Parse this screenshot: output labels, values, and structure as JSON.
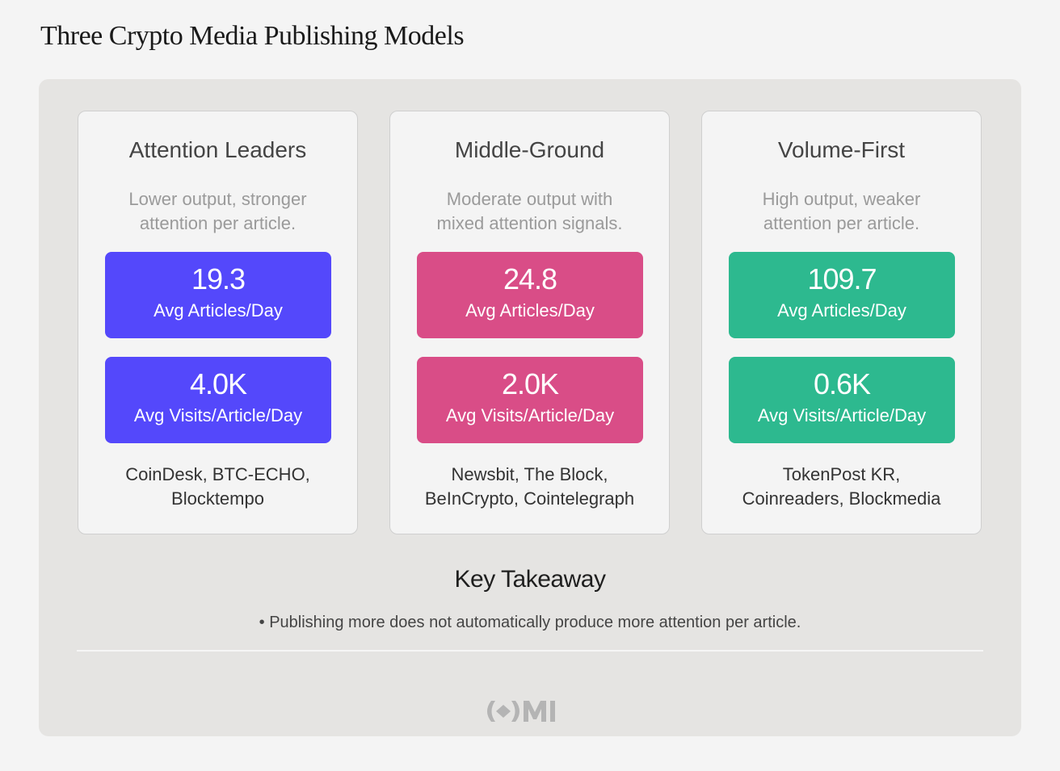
{
  "title": "Three Crypto Media Publishing Models",
  "cards": [
    {
      "title": "Attention Leaders",
      "color": "#5448fb",
      "description": [
        "Lower output, stronger",
        "attention per article."
      ],
      "metrics": [
        {
          "value": "19.3",
          "label": "Avg Articles/Day"
        },
        {
          "value": "4.0K",
          "label": "Avg Visits/Article/Day"
        }
      ],
      "outlets": [
        "CoinDesk, BTC-ECHO,",
        "Blocktempo"
      ]
    },
    {
      "title": "Middle-Ground",
      "color": "#d94d87",
      "description": [
        "Moderate output with",
        "mixed attention signals."
      ],
      "metrics": [
        {
          "value": "24.8",
          "label": "Avg Articles/Day"
        },
        {
          "value": "2.0K",
          "label": "Avg Visits/Article/Day"
        }
      ],
      "outlets": [
        "Newsbit, The Block,",
        "BeInCrypto, Cointelegraph"
      ]
    },
    {
      "title": "Volume-First",
      "color": "#2db98f",
      "description": [
        "High output, weaker",
        "attention per article."
      ],
      "metrics": [
        {
          "value": "109.7",
          "label": "Avg Articles/Day"
        },
        {
          "value": "0.6K",
          "label": "Avg Visits/Article/Day"
        }
      ],
      "outlets": [
        "TokenPost KR,",
        "Coinreaders, Blockmedia"
      ]
    }
  ],
  "takeaway": {
    "heading": "Key Takeaway",
    "bullets": [
      "Publishing more does not automatically produce more attention per article."
    ]
  }
}
